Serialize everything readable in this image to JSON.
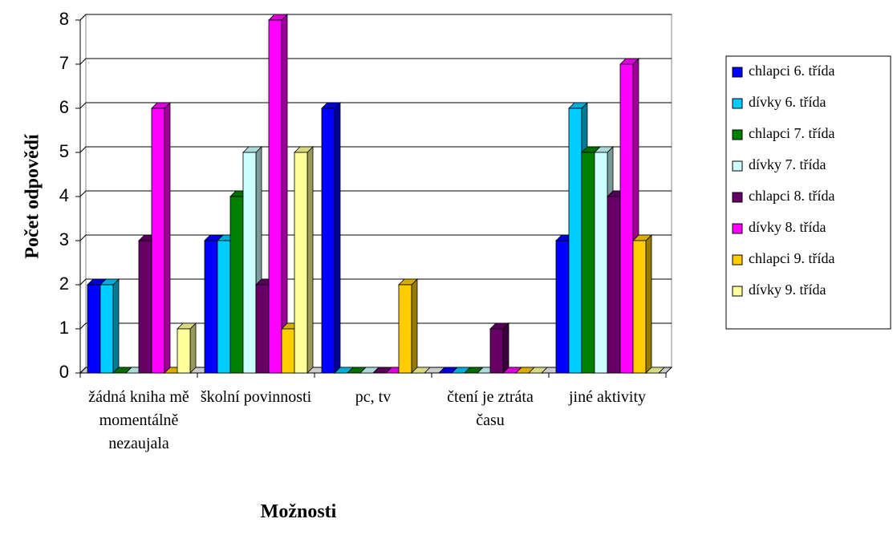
{
  "chart_data": {
    "type": "bar3d",
    "x_label": "Možnosti",
    "y_label": "Počet odpovědí",
    "categories": [
      "žádná kniha mě momentálně nezaujala",
      "školní povinnosti",
      "pc, tv",
      "čtení je ztráta času",
      "jiné aktivity"
    ],
    "series": [
      {
        "name": "chlapci 6. třída",
        "color": "#0000FF",
        "values": [
          2,
          3,
          6,
          0,
          3
        ]
      },
      {
        "name": "dívky 6. třída",
        "color": "#00CCFF",
        "values": [
          2,
          3,
          0,
          0,
          6
        ]
      },
      {
        "name": "chlapci 7. třída",
        "color": "#008000",
        "values": [
          0,
          4,
          0,
          0,
          5
        ]
      },
      {
        "name": "dívky 7. třída",
        "color": "#CCFFFF",
        "values": [
          0,
          5,
          0,
          0,
          5
        ]
      },
      {
        "name": "chlapci 8. třída",
        "color": "#660066",
        "values": [
          3,
          2,
          0,
          1,
          4
        ]
      },
      {
        "name": "dívky 8. třída",
        "color": "#FF00FF",
        "values": [
          6,
          8,
          0,
          0,
          7
        ]
      },
      {
        "name": "chlapci 9. třída",
        "color": "#FFCC00",
        "values": [
          0,
          1,
          2,
          0,
          3
        ]
      },
      {
        "name": "dívky 9. třída",
        "color": "#FFFF99",
        "values": [
          1,
          5,
          0,
          0,
          0
        ]
      }
    ],
    "ylim": [
      0,
      8
    ],
    "yticks": [
      0,
      1,
      2,
      3,
      4,
      5,
      6,
      7,
      8
    ],
    "grid": true,
    "legend": "right"
  }
}
